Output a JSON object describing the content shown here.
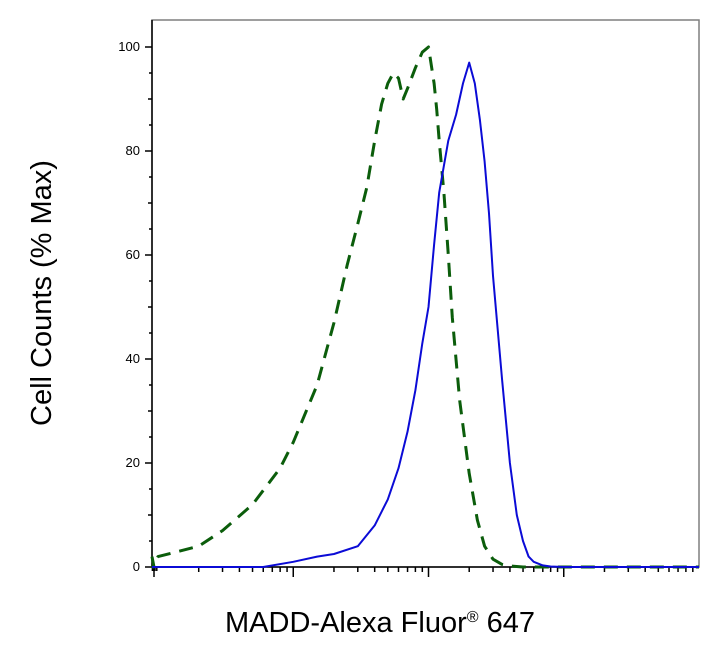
{
  "chart_data": {
    "type": "line",
    "xlabel": "MADD-Alexa Fluor",
    "xlabel_mark": "®",
    "xlabel_suffix": " 647",
    "ylabel": "Cell Counts (% Max)",
    "x_scale": "log",
    "xlim": [
      -10,
      100000
    ],
    "ylim": [
      0,
      105
    ],
    "y_ticks": [
      0,
      20,
      40,
      60,
      80,
      100
    ],
    "y_tick_labels": [
      "0",
      "20",
      "40",
      "60",
      "80",
      "100"
    ],
    "x_tick_labels": [],
    "grid": false,
    "legend": "none",
    "series": [
      {
        "style": "dashed",
        "color": "#0b5d0b",
        "x": [
          -10,
          0,
          1,
          2,
          5,
          10,
          20,
          30,
          50,
          80,
          100,
          150,
          200,
          250,
          300,
          350,
          400,
          450,
          500,
          550,
          600,
          650,
          700,
          800,
          900,
          1000,
          1100,
          1150,
          1200,
          1300,
          1400,
          1500,
          1700,
          2000,
          2300,
          2600,
          3000,
          3500,
          4000,
          5000,
          6000,
          8000,
          10000,
          100000
        ],
        "y": [
          2,
          0,
          0,
          0,
          1,
          2,
          4,
          7,
          12,
          19,
          24,
          35,
          47,
          58,
          66,
          73,
          82,
          89,
          93,
          95,
          94,
          90,
          92,
          96,
          99,
          100,
          93,
          88,
          82,
          72,
          60,
          48,
          32,
          18,
          9,
          4,
          1.5,
          0.5,
          0.2,
          0,
          0,
          0,
          0,
          0
        ]
      },
      {
        "style": "solid",
        "color": "#0b0bd6",
        "x": [
          -10,
          0,
          10,
          30,
          60,
          100,
          150,
          200,
          300,
          400,
          500,
          600,
          700,
          800,
          900,
          1000,
          1100,
          1200,
          1400,
          1600,
          1800,
          2000,
          2200,
          2400,
          2600,
          2800,
          3000,
          3500,
          4000,
          4500,
          5000,
          5500,
          6000,
          7000,
          8000,
          10000,
          20000,
          50000,
          100000
        ],
        "y": [
          0,
          0,
          0,
          0,
          0,
          1,
          2,
          2.5,
          4,
          8,
          13,
          19,
          26,
          34,
          43,
          50,
          62,
          72,
          82,
          87,
          93,
          97,
          93,
          86,
          78,
          68,
          56,
          36,
          20,
          10,
          5,
          2,
          1,
          0.3,
          0.1,
          0,
          0,
          0,
          0
        ]
      }
    ]
  }
}
